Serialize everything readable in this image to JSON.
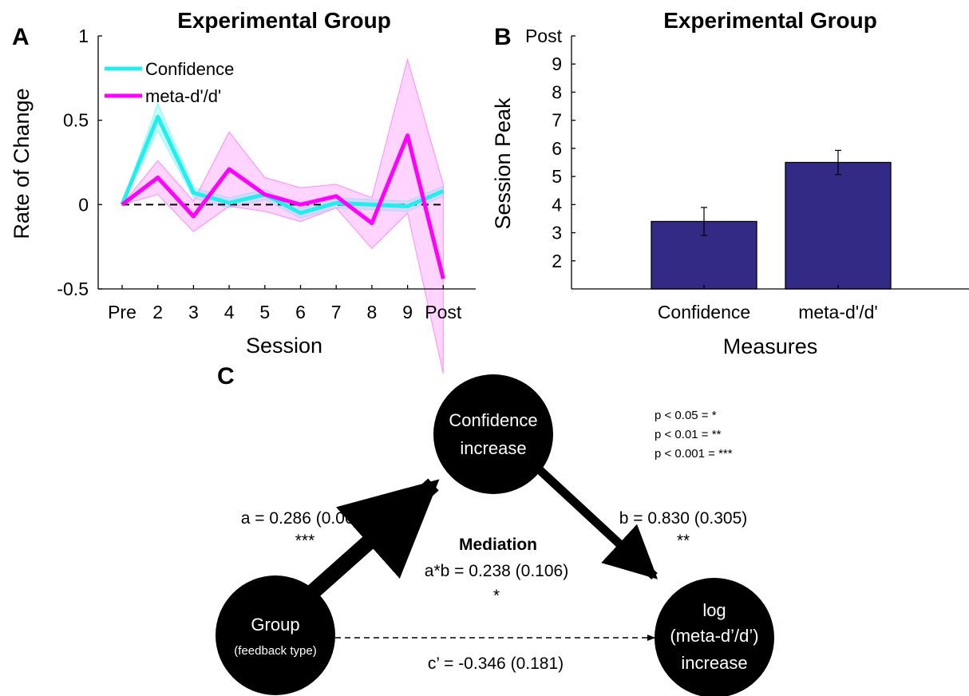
{
  "chart_data": [
    {
      "type": "line",
      "panel_letter": "A",
      "title": "Experimental Group",
      "xlabel": "Session",
      "ylabel": "Rate of Change",
      "categories": [
        "Pre",
        "2",
        "3",
        "4",
        "5",
        "6",
        "7",
        "8",
        "9",
        "Post"
      ],
      "ylim": [
        -0.5,
        1
      ],
      "yticks": [
        -0.5,
        0,
        0.5,
        1
      ],
      "ytick_labels": [
        "-0.5",
        "0",
        "0.5",
        "1"
      ],
      "reference_line": 0,
      "grid": false,
      "legend_position": "top-left",
      "series": [
        {
          "name": "Confidence",
          "color": "#22eeee",
          "band_color": "#7fffff",
          "values": [
            0.0,
            0.52,
            0.07,
            0.01,
            0.06,
            -0.05,
            0.01,
            0.0,
            -0.01,
            0.08
          ],
          "lower": [
            0.0,
            0.44,
            0.04,
            -0.02,
            0.03,
            -0.08,
            -0.02,
            -0.03,
            -0.04,
            0.05
          ],
          "upper": [
            0.0,
            0.6,
            0.1,
            0.04,
            0.09,
            -0.02,
            0.04,
            0.03,
            0.02,
            0.11
          ]
        },
        {
          "name": "meta-d'/d'",
          "color": "#ff00ff",
          "band_color": "#ff88ff",
          "values": [
            0.0,
            0.16,
            -0.07,
            0.21,
            0.06,
            0.0,
            0.05,
            -0.11,
            0.41,
            -0.44
          ],
          "lower": [
            0.0,
            0.06,
            -0.16,
            -0.01,
            -0.04,
            -0.1,
            -0.02,
            -0.26,
            -0.05,
            -1.0
          ],
          "upper": [
            0.0,
            0.26,
            0.02,
            0.43,
            0.16,
            0.1,
            0.12,
            0.04,
            0.86,
            0.12
          ]
        }
      ]
    },
    {
      "type": "bar",
      "panel_letter": "B",
      "title": "Experimental Group",
      "xlabel": "Measures",
      "ylabel": "Session Peak",
      "categories": [
        "Confidence",
        "meta-d'/d'"
      ],
      "values": [
        3.4,
        5.5
      ],
      "error": [
        0.5,
        0.43
      ],
      "ylim": [
        1,
        10
      ],
      "yticks": [
        2,
        3,
        4,
        5,
        6,
        7,
        8,
        9,
        10
      ],
      "ytick_labels": [
        "2",
        "3",
        "4",
        "5",
        "6",
        "7",
        "8",
        "9",
        "Post"
      ],
      "bar_color": "#332a85",
      "grid": false
    }
  ],
  "diagram": {
    "panel_letter": "C",
    "nodes": {
      "mediator": [
        "Confidence",
        "increase"
      ],
      "predictor": [
        "Group",
        "(feedback type)"
      ],
      "outcome": [
        "log",
        "(meta-d’/d’)",
        "increase"
      ]
    },
    "paths": {
      "a": "a = 0.286 (0.068)",
      "a_sig": "***",
      "b": "b = 0.830 (0.305)",
      "b_sig": "**",
      "c_prime": "c’ = -0.346 (0.181)"
    },
    "mediation": {
      "title": "Mediation",
      "value": "a*b = 0.238 (0.106)",
      "sig": "*"
    },
    "legend": [
      "p < 0.05   = *",
      "p < 0.01   = **",
      "p < 0.001 = ***"
    ]
  }
}
